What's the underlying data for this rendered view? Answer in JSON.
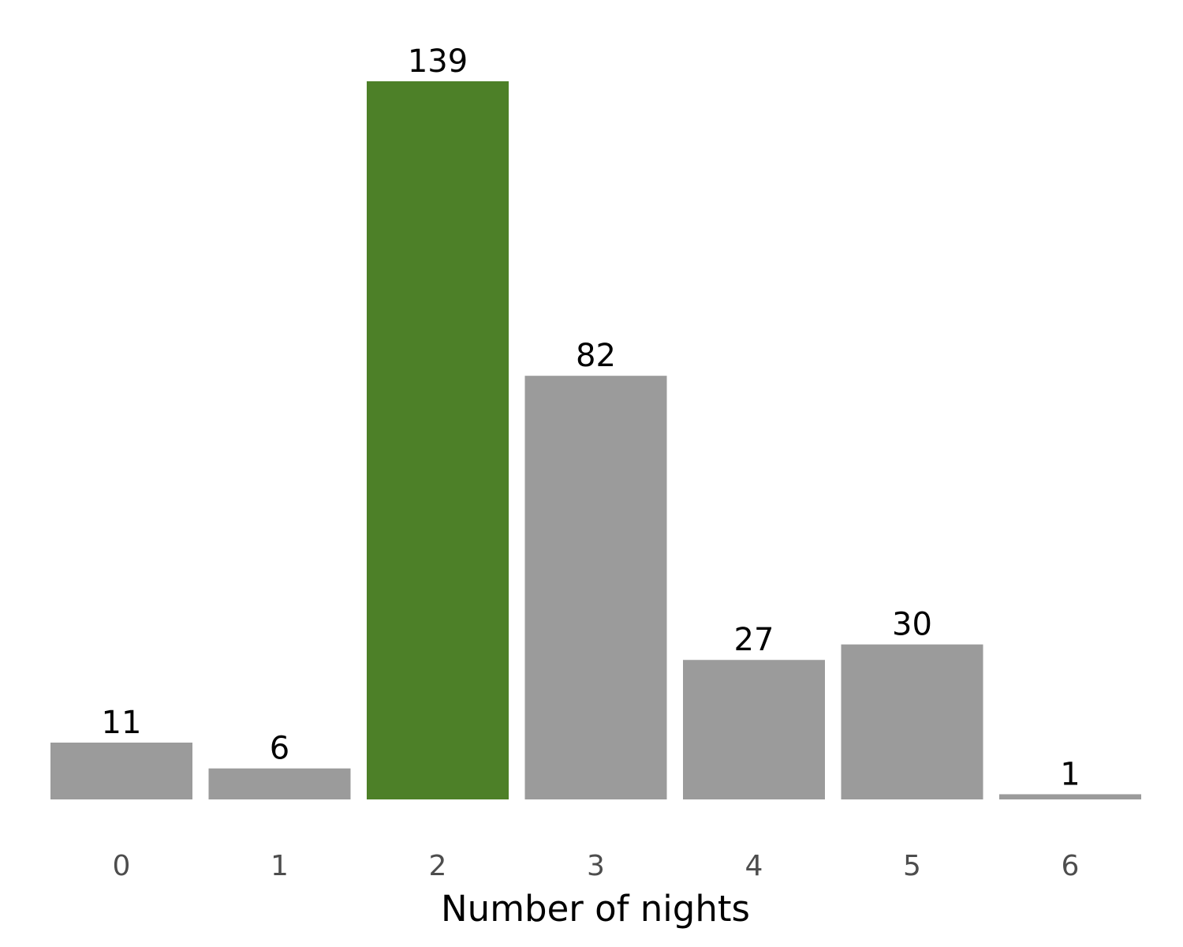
{
  "chart_data": {
    "type": "bar",
    "categories": [
      "0",
      "1",
      "2",
      "3",
      "4",
      "5",
      "6"
    ],
    "values": [
      11,
      6,
      139,
      82,
      27,
      30,
      1
    ],
    "xlabel": "Number of nights",
    "ylabel": "",
    "title": "",
    "ylim": [
      0,
      139
    ],
    "grid": false,
    "legend": "none",
    "colors": {
      "default": "#9b9b9b",
      "highlight": "#4d8028"
    },
    "highlight_category": "2"
  }
}
